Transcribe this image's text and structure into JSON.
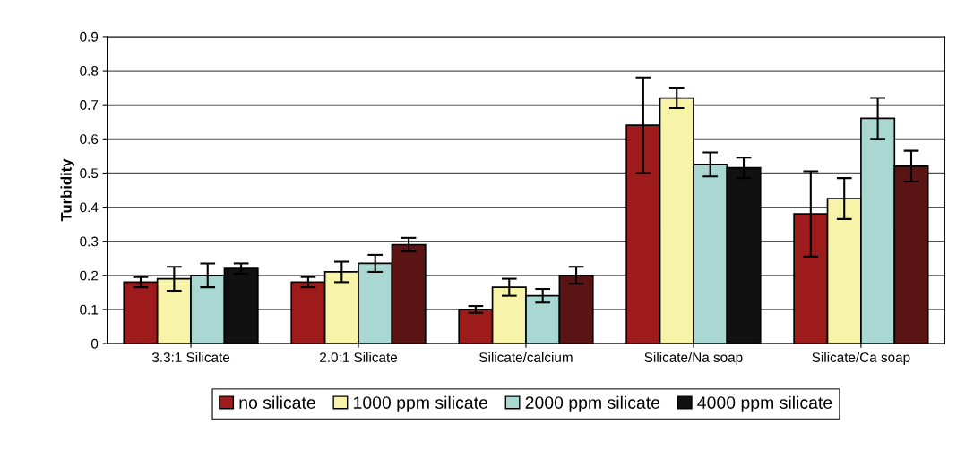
{
  "chart_data": {
    "type": "bar",
    "ylabel": "Turbidity",
    "categories": [
      "3.3:1 Silicate",
      "2.0:1 Silicate",
      "Silicate/calcium",
      "Silicate/Na soap",
      "Silicate/Ca soap"
    ],
    "series": [
      {
        "name": "no silicate",
        "color": "#9e1b1b",
        "values": [
          0.18,
          0.18,
          0.1,
          0.64,
          0.38
        ],
        "errors": [
          0.015,
          0.015,
          0.01,
          0.14,
          0.125
        ]
      },
      {
        "name": "1000 ppm silicate",
        "color": "#f7f3a8",
        "values": [
          0.19,
          0.21,
          0.165,
          0.72,
          0.425
        ],
        "errors": [
          0.035,
          0.03,
          0.025,
          0.03,
          0.06
        ]
      },
      {
        "name": "2000 ppm silicate",
        "color": "#a9d8d2",
        "values": [
          0.2,
          0.235,
          0.14,
          0.525,
          0.66
        ],
        "errors": [
          0.035,
          0.025,
          0.02,
          0.035,
          0.06
        ]
      },
      {
        "name": "4000 ppm silicate",
        "color": "#111111",
        "colors": [
          "#111111",
          "#5a1414",
          "#5a1414",
          "#111111",
          "#5a1414"
        ],
        "values": [
          0.22,
          0.29,
          0.2,
          0.515,
          0.52
        ],
        "errors": [
          0.015,
          0.02,
          0.025,
          0.03,
          0.045
        ]
      }
    ],
    "ylim": [
      0,
      0.9
    ],
    "yticks": [
      0,
      0.1,
      0.2,
      0.3,
      0.4,
      0.5,
      0.6,
      0.7,
      0.8,
      0.9
    ],
    "grid": "y",
    "legend": "bottom"
  }
}
